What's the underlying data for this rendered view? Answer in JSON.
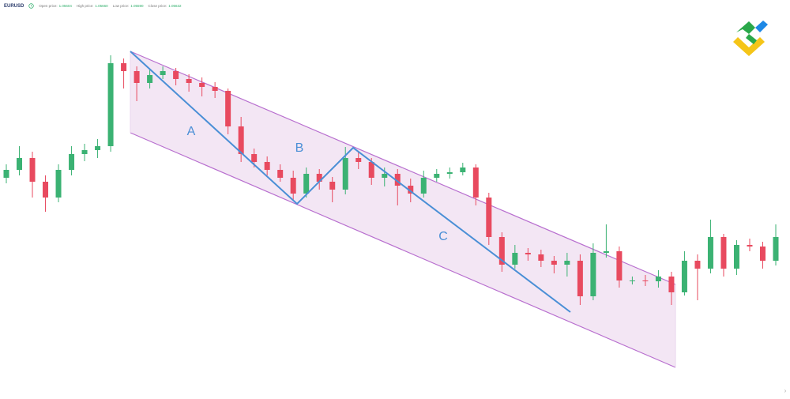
{
  "header": {
    "symbol": "EURUSD",
    "fields": [
      {
        "label": "Open price:",
        "value": "1.05604"
      },
      {
        "label": "High price:",
        "value": "1.05660"
      },
      {
        "label": "Low price:",
        "value": "1.05590"
      },
      {
        "label": "Close price:",
        "value": "1.05632"
      }
    ]
  },
  "chart_data": {
    "type": "candlestick",
    "annotations": [
      "A",
      "B",
      "C"
    ],
    "up_color": "#3bb273",
    "down_color": "#e84a5f",
    "ylim": [
      1.04975,
      1.075
    ],
    "open": [
      1.06375,
      1.06425,
      1.065,
      1.0635,
      1.0625,
      1.06425,
      1.06525,
      1.0655,
      1.06575,
      1.071,
      1.0705,
      1.06975,
      1.07025,
      1.0705,
      1.07,
      1.06975,
      1.0695,
      1.06925,
      1.067,
      1.06525,
      1.06475,
      1.06425,
      1.06375,
      1.06275,
      1.064,
      1.0635,
      1.063,
      1.065,
      1.06475,
      1.06375,
      1.064,
      1.06325,
      1.06275,
      1.06375,
      1.064,
      1.0641,
      1.0644,
      1.0625,
      1.06,
      1.05825,
      1.059,
      1.0589,
      1.0585,
      1.05825,
      1.0585,
      1.05625,
      1.059,
      1.0591,
      1.05725,
      1.05725,
      1.0572,
      1.0575,
      1.0565,
      1.0585,
      1.058,
      1.06,
      1.058,
      1.0595,
      1.0594,
      1.0585
    ],
    "high": [
      1.0646,
      1.06575,
      1.0654,
      1.0639,
      1.0646,
      1.06575,
      1.0659,
      1.0662,
      1.0715,
      1.0713,
      1.0708,
      1.0706,
      1.0708,
      1.0707,
      1.0703,
      1.0701,
      1.0698,
      1.0694,
      1.0676,
      1.0656,
      1.0651,
      1.0646,
      1.0642,
      1.0644,
      1.0643,
      1.0638,
      1.0657,
      1.0654,
      1.065,
      1.0644,
      1.0643,
      1.0637,
      1.0642,
      1.0643,
      1.0644,
      1.0647,
      1.0646,
      1.0628,
      1.0603,
      1.0595,
      1.0593,
      1.0592,
      1.0588,
      1.059,
      1.0589,
      1.0596,
      1.0608,
      1.0594,
      1.0575,
      1.0576,
      1.0579,
      1.0578,
      1.0591,
      1.0589,
      1.0611,
      1.0602,
      1.0598,
      1.0599,
      1.0597,
      1.0608
    ],
    "low": [
      1.0634,
      1.0639,
      1.0625,
      1.0616,
      1.0622,
      1.0639,
      1.0648,
      1.065,
      1.0654,
      1.0694,
      1.0686,
      1.0694,
      1.07,
      1.0696,
      1.0692,
      1.0689,
      1.0688,
      1.0665,
      1.06475,
      1.0644,
      1.0639,
      1.0635,
      1.0623,
      1.0625,
      1.063,
      1.0622,
      1.0627,
      1.0643,
      1.0633,
      1.0632,
      1.062,
      1.0622,
      1.0625,
      1.0635,
      1.0637,
      1.0639,
      1.062,
      1.0595,
      1.0578,
      1.058,
      1.0585,
      1.0581,
      1.0577,
      1.0575,
      1.0557,
      1.056,
      1.0587,
      1.0568,
      1.057,
      1.0569,
      1.0568,
      1.0557,
      1.0563,
      1.056,
      1.0577,
      1.0575,
      1.0576,
      1.0591,
      1.058,
      1.0582
    ],
    "close": [
      1.06425,
      1.065,
      1.0635,
      1.0625,
      1.06425,
      1.06525,
      1.0655,
      1.06575,
      1.071,
      1.0705,
      1.06975,
      1.07025,
      1.0705,
      1.07,
      1.06975,
      1.0695,
      1.06925,
      1.067,
      1.06525,
      1.06475,
      1.06425,
      1.06375,
      1.06275,
      1.064,
      1.0635,
      1.063,
      1.065,
      1.06475,
      1.06375,
      1.064,
      1.06325,
      1.06275,
      1.06375,
      1.064,
      1.0641,
      1.0644,
      1.0625,
      1.06,
      1.05825,
      1.059,
      1.0589,
      1.0585,
      1.05825,
      1.0585,
      1.05625,
      1.059,
      1.0591,
      1.05725,
      1.05725,
      1.0572,
      1.0575,
      1.0565,
      1.0585,
      1.058,
      1.06,
      1.058,
      1.0595,
      1.0594,
      1.0585,
      1.06
    ]
  }
}
